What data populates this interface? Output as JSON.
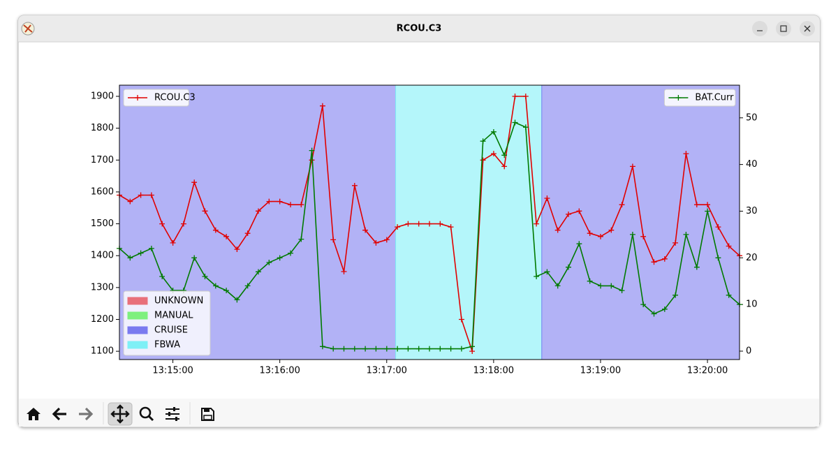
{
  "window": {
    "title": "RCOU.C3"
  },
  "chart_data": {
    "type": "line",
    "x": [
      47670,
      47676,
      47682,
      47688,
      47694,
      47700,
      47706,
      47712,
      47718,
      47724,
      47730,
      47736,
      47742,
      47748,
      47754,
      47760,
      47766,
      47772,
      47778,
      47784,
      47790,
      47796,
      47802,
      47808,
      47814,
      47820,
      47826,
      47832,
      47838,
      47844,
      47850,
      47856,
      47862,
      47868,
      47874,
      47880,
      47886,
      47892,
      47898,
      47904,
      47910,
      47916,
      47922,
      47928,
      47934,
      47940,
      47946,
      47952,
      47958,
      47964,
      47970,
      47976,
      47982,
      47988,
      47994,
      48000,
      48006,
      48012,
      48018
    ],
    "series": [
      {
        "name": "RCOU.C3",
        "color": "#e00000",
        "axis": "y",
        "values": [
          1590,
          1570,
          1590,
          1590,
          1500,
          1440,
          1500,
          1630,
          1540,
          1480,
          1460,
          1420,
          1470,
          1540,
          1570,
          1570,
          1560,
          1560,
          1700,
          1870,
          1450,
          1350,
          1620,
          1480,
          1440,
          1450,
          1490,
          1500,
          1500,
          1500,
          1500,
          1490,
          1200,
          1100,
          1700,
          1720,
          1680,
          1900,
          1900,
          1500,
          1580,
          1480,
          1530,
          1540,
          1470,
          1460,
          1480,
          1560,
          1680,
          1460,
          1380,
          1390,
          1440,
          1720,
          1560,
          1560,
          1490,
          1430,
          1400
        ]
      },
      {
        "name": "BAT.Curr",
        "color": "#007a00",
        "axis": "y2",
        "values": [
          22,
          20,
          21,
          22,
          16,
          13,
          13,
          20,
          16,
          14,
          13,
          11,
          14,
          17,
          19,
          20,
          21,
          24,
          43,
          1,
          0.5,
          0.5,
          0.5,
          0.5,
          0.5,
          0.5,
          0.5,
          0.5,
          0.5,
          0.5,
          0.5,
          0.5,
          0.5,
          1,
          45,
          47,
          42,
          49,
          48,
          16,
          17,
          14,
          18,
          23,
          15,
          14,
          14,
          13,
          25,
          10,
          8,
          9,
          12,
          25,
          18,
          30,
          20,
          12,
          10
        ]
      }
    ],
    "xlim": [
      47670,
      48018
    ],
    "xticks": [
      {
        "value": 47700,
        "label": "13:15:00"
      },
      {
        "value": 47760,
        "label": "13:16:00"
      },
      {
        "value": 47820,
        "label": "13:17:00"
      },
      {
        "value": 47880,
        "label": "13:18:00"
      },
      {
        "value": 47940,
        "label": "13:19:00"
      },
      {
        "value": 48000,
        "label": "13:20:00"
      }
    ],
    "ylim": [
      1074,
      1935
    ],
    "yticks": [
      1100,
      1200,
      1300,
      1400,
      1500,
      1600,
      1700,
      1800,
      1900
    ],
    "y2lim": [
      -1.8,
      57
    ],
    "y2ticks": [
      0,
      10,
      20,
      30,
      40,
      50
    ],
    "legend": "upper left",
    "legend2": "upper right",
    "modes": [
      {
        "name": "UNKNOWN",
        "color": "#e8707a"
      },
      {
        "name": "MANUAL",
        "color": "#7ef07e"
      },
      {
        "name": "CRUISE",
        "color": "#7a7aef"
      },
      {
        "name": "FBWA",
        "color": "#7ef0f6"
      }
    ],
    "mode_legend": "lower left",
    "mode_spans": [
      {
        "mode": 2,
        "start": 47670,
        "end": 47825
      },
      {
        "mode": 3,
        "start": 47825,
        "end": 47907
      },
      {
        "mode": 2,
        "start": 47907,
        "end": 48018
      }
    ]
  }
}
